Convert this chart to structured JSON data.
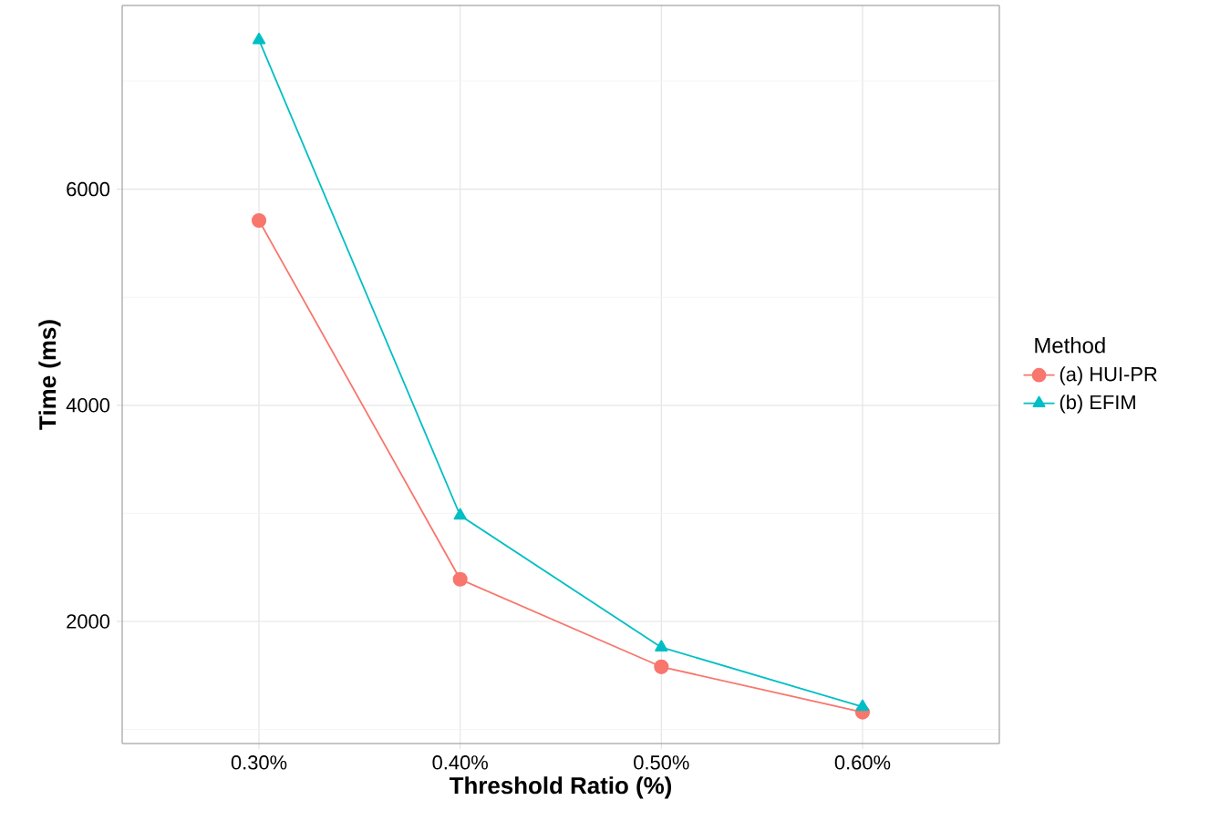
{
  "chart_data": {
    "type": "line",
    "xlabel": "Threshold Ratio (%)",
    "ylabel": "Time (ms)",
    "legend_title": "Method",
    "categories": [
      "0.30%",
      "0.40%",
      "0.50%",
      "0.60%"
    ],
    "series": [
      {
        "name": "(a) HUI-PR",
        "color": "#f8766d",
        "marker": "circle",
        "values": [
          5710,
          2390,
          1580,
          1160
        ]
      },
      {
        "name": "(b) EFIM",
        "color": "#00bfc4",
        "marker": "triangle",
        "values": [
          7380,
          2980,
          1760,
          1210
        ]
      }
    ],
    "ylim": [
      870,
      7700
    ],
    "yticks": [
      2000,
      4000,
      6000
    ],
    "grid": true,
    "legend": "right",
    "line_style": "solid"
  }
}
